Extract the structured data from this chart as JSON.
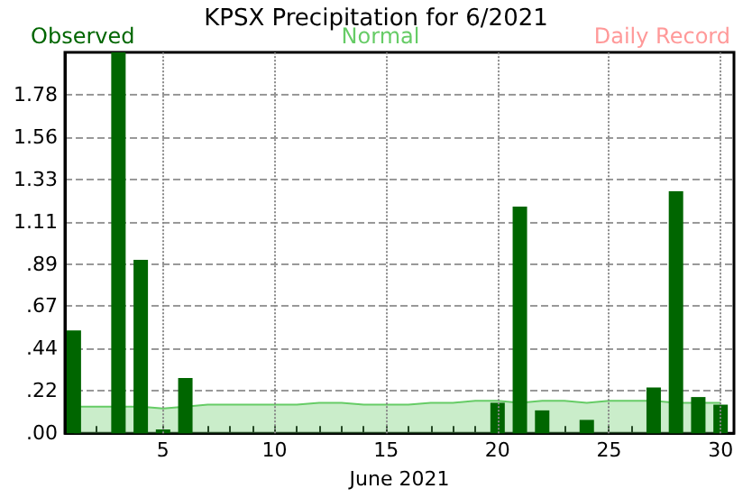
{
  "chart_data": {
    "type": "bar",
    "title": "KPSX Precipitation for 6/2021",
    "xlabel": "June 2021",
    "x": [
      1,
      2,
      3,
      4,
      5,
      6,
      7,
      8,
      9,
      10,
      11,
      12,
      13,
      14,
      15,
      16,
      17,
      18,
      19,
      20,
      21,
      22,
      23,
      24,
      25,
      26,
      27,
      28,
      29,
      30
    ],
    "series": [
      {
        "name": "Observed",
        "color": "#006600",
        "values": [
          0.54,
          null,
          2.0,
          0.91,
          0.02,
          0.29,
          null,
          null,
          null,
          null,
          null,
          null,
          null,
          null,
          null,
          null,
          null,
          null,
          null,
          0.16,
          1.19,
          0.12,
          null,
          0.07,
          null,
          null,
          0.24,
          1.27,
          0.19,
          0.15
        ]
      },
      {
        "name": "Normal",
        "type": "area",
        "color": "#66cc66",
        "values": [
          0.14,
          0.14,
          0.14,
          0.14,
          0.13,
          0.14,
          0.15,
          0.15,
          0.15,
          0.15,
          0.15,
          0.16,
          0.16,
          0.15,
          0.15,
          0.15,
          0.16,
          0.16,
          0.17,
          0.17,
          0.16,
          0.17,
          0.17,
          0.16,
          0.17,
          0.17,
          0.17,
          0.16,
          0.16,
          0.16
        ]
      },
      {
        "name": "Daily Record",
        "type": "line",
        "color": "#ff9999",
        "values": [
          null,
          null,
          null,
          null,
          null,
          null,
          null,
          null,
          null,
          null,
          null,
          null,
          null,
          null,
          null,
          null,
          null,
          null,
          null,
          null,
          null,
          null,
          null,
          null,
          null,
          null,
          null,
          null,
          null,
          null
        ]
      }
    ],
    "xlim": [
      0.6,
      30.6
    ],
    "xticks": [
      {
        "value": 1,
        "label": null
      },
      {
        "value": 2,
        "label": null
      },
      {
        "value": 3,
        "label": null
      },
      {
        "value": 4,
        "label": null
      },
      5,
      {
        "value": 6,
        "label": null
      },
      {
        "value": 7,
        "label": null
      },
      {
        "value": 8,
        "label": null
      },
      {
        "value": 9,
        "label": null
      },
      10,
      {
        "value": 11,
        "label": null
      },
      {
        "value": 12,
        "label": null
      },
      {
        "value": 13,
        "label": null
      },
      {
        "value": 14,
        "label": null
      },
      15,
      {
        "value": 16,
        "label": null
      },
      {
        "value": 17,
        "label": null
      },
      {
        "value": 18,
        "label": null
      },
      {
        "value": 19,
        "label": null
      },
      20,
      {
        "value": 21,
        "label": null
      },
      {
        "value": 22,
        "label": null
      },
      {
        "value": 23,
        "label": null
      },
      {
        "value": 24,
        "label": null
      },
      25,
      {
        "value": 26,
        "label": null
      },
      {
        "value": 27,
        "label": null
      },
      {
        "value": 28,
        "label": null
      },
      {
        "value": 29,
        "label": null
      },
      30
    ],
    "ylim": [
      0,
      2.0
    ],
    "yticks": [
      {
        "value": 0,
        "label": ".00"
      },
      {
        "value": 0.222,
        "label": ".22"
      },
      {
        "value": 0.444,
        "label": ".44"
      },
      {
        "value": 0.667,
        "label": ".67"
      },
      {
        "value": 0.889,
        "label": ".89"
      },
      {
        "value": 1.111,
        "label": "1.11"
      },
      {
        "value": 1.333,
        "label": "1.33"
      },
      {
        "value": 1.556,
        "label": "1.56"
      },
      {
        "value": 1.778,
        "label": "1.78"
      }
    ],
    "grid": true,
    "legend": "top"
  }
}
